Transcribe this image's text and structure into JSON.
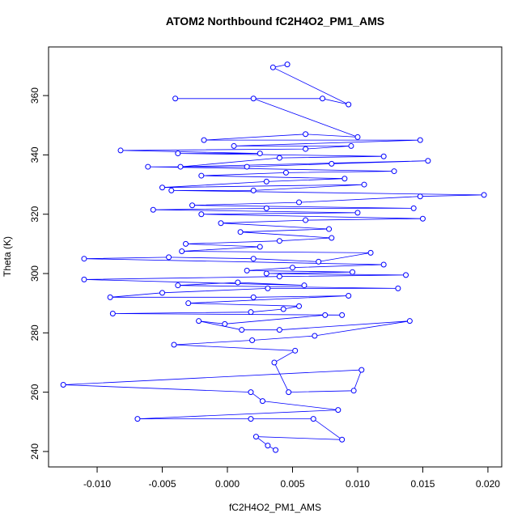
{
  "chart_data": {
    "type": "line",
    "marker": "circle",
    "title": "ATOM2 Northbound fC2H4O2_PM1_AMS",
    "x_label": "fC2H4O2_PM1_AMS",
    "y_label": "Theta (K)",
    "xlim": [
      -0.01373,
      0.02106
    ],
    "ylim": [
      234.8,
      376.4
    ],
    "xticks": [
      {
        "value": -0.01,
        "label": "-0.010"
      },
      {
        "value": -0.005,
        "label": "-0.005"
      },
      {
        "value": 0,
        "label": "0.000"
      },
      {
        "value": 0.005,
        "label": "0.005"
      },
      {
        "value": 0.01,
        "label": "0.010"
      },
      {
        "value": 0.015,
        "label": "0.015"
      },
      {
        "value": 0.02,
        "label": "0.020"
      }
    ],
    "yticks": [
      240,
      260,
      280,
      300,
      320,
      340,
      360
    ],
    "color": "#0000ff",
    "x": [
      0.0037,
      0.0031,
      0.0022,
      0.0088,
      0.0066,
      0.0018,
      -0.0069,
      0.0085,
      0.0027,
      0.0018,
      -0.0126,
      0.0103,
      0.0097,
      0.0047,
      0.0036,
      0.0052,
      -0.0041,
      0.0019,
      0.0067,
      0.014,
      0.004,
      0.0011,
      -0.0022,
      -0.0002,
      0.0075,
      0.0088,
      -0.0088,
      0.0018,
      0.0043,
      0.0055,
      -0.003,
      0.0093,
      0.002,
      -0.009,
      -0.005,
      0.0031,
      0.0131,
      -0.0038,
      0.0008,
      0.0059,
      -0.011,
      0.004,
      0.0137,
      0.003,
      0.0096,
      0.0015,
      0.005,
      0.012,
      -0.011,
      -0.0045,
      0.002,
      0.007,
      0.011,
      -0.0035,
      0.0025,
      -0.0032,
      0.004,
      0.008,
      0.001,
      0.0078,
      -0.0005,
      0.006,
      0.015,
      -0.002,
      0.01,
      -0.0057,
      0.003,
      0.0143,
      -0.0027,
      0.0055,
      0.0148,
      0.0197,
      -0.0043,
      0.002,
      0.0105,
      -0.005,
      0.003,
      0.009,
      -0.002,
      0.0045,
      0.0128,
      -0.0061,
      0.0015,
      0.008,
      0.0154,
      -0.0036,
      0.004,
      0.012,
      -0.0038,
      0.0025,
      -0.0082,
      0.006,
      0.0095,
      0.0005,
      0.0148,
      -0.0018,
      0.006,
      0.01,
      0.002,
      -0.004,
      0.0073,
      0.0093,
      0.0035,
      0.0046
    ],
    "values": [
      240.5,
      242,
      245,
      244,
      251,
      251,
      251,
      254,
      257,
      260,
      262.5,
      267.5,
      260.5,
      260,
      270,
      274,
      276,
      277.5,
      279,
      284,
      281,
      281,
      284,
      283,
      286,
      286,
      286.5,
      287,
      288,
      289,
      290,
      292.5,
      292,
      292,
      293.5,
      295,
      295,
      296,
      297,
      296,
      298,
      299,
      299.5,
      300,
      300.5,
      301,
      302,
      303,
      305,
      305.5,
      305,
      304,
      307,
      307.5,
      309,
      310,
      311,
      312,
      314,
      315,
      317,
      318,
      318.5,
      320,
      320.5,
      321.5,
      322,
      322,
      323,
      324,
      326,
      326.5,
      328,
      328,
      330,
      329,
      331,
      332,
      333,
      334,
      334.5,
      336,
      336,
      337,
      338,
      336,
      339,
      339.5,
      340.5,
      340.5,
      341.5,
      342,
      343,
      343,
      345,
      345,
      347,
      346,
      359,
      359,
      359,
      357,
      369.5,
      370.5
    ]
  }
}
